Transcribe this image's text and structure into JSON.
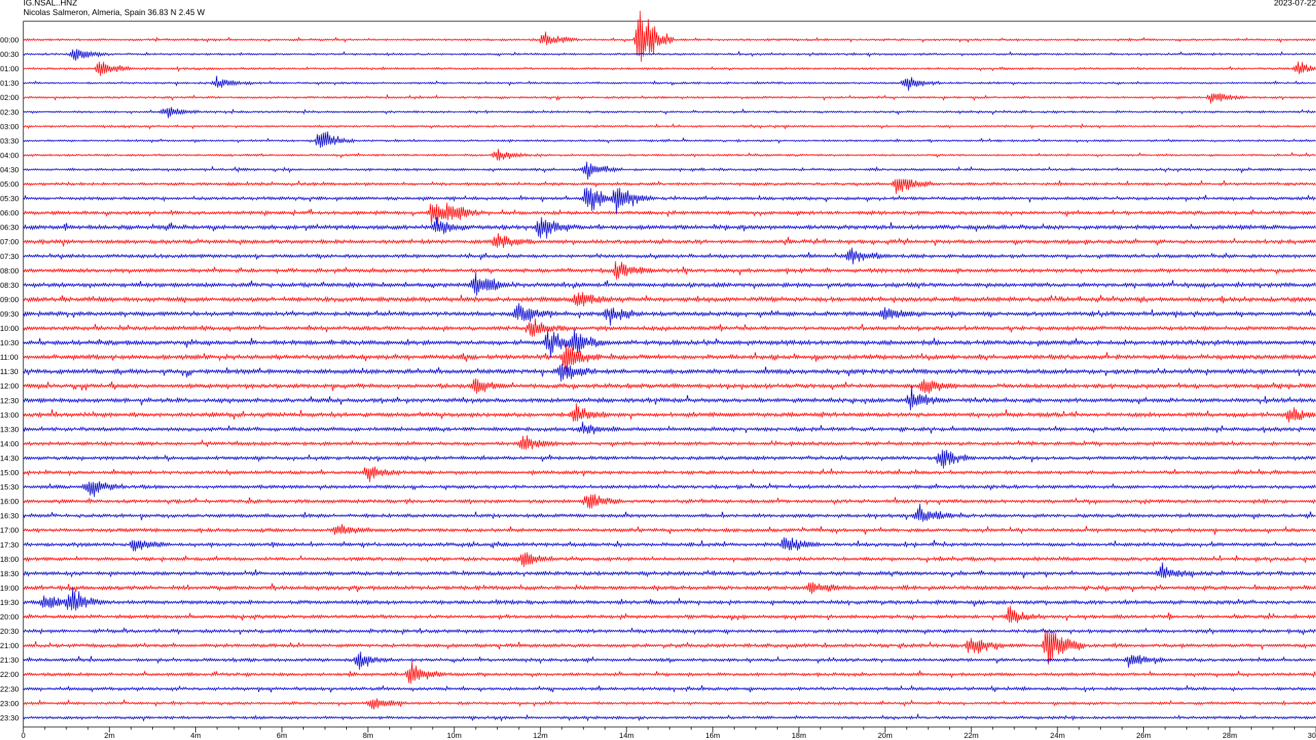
{
  "header": {
    "station": "IG.NSAL..HNZ",
    "location": "Nicolas Salmeron, Almeria, Spain  36.83 N 2.45 W",
    "date": "2023-07-22"
  },
  "colors": {
    "even_row": "#ff0000",
    "odd_row": "#0000cc",
    "axis": "#000000"
  },
  "chart_data": {
    "type": "helicorder",
    "title": "IG.NSAL..HNZ",
    "subtitle": "Nicolas Salmeron, Almeria, Spain  36.83 N 2.45 W",
    "date": "2023-07-22",
    "rows": [
      "00:00",
      "00:30",
      "01:00",
      "01:30",
      "02:00",
      "02:30",
      "03:00",
      "03:30",
      "04:00",
      "04:30",
      "05:00",
      "05:30",
      "06:00",
      "06:30",
      "07:00",
      "07:30",
      "08:00",
      "08:30",
      "09:00",
      "09:30",
      "10:00",
      "10:30",
      "11:00",
      "11:30",
      "12:00",
      "12:30",
      "13:00",
      "13:30",
      "14:00",
      "14:30",
      "15:00",
      "15:30",
      "16:00",
      "16:30",
      "17:00",
      "17:30",
      "18:00",
      "18:30",
      "19:00",
      "19:30",
      "20:00",
      "20:30",
      "21:00",
      "21:30",
      "22:00",
      "22:30",
      "23:00",
      "23:30"
    ],
    "noise_level": [
      0.6,
      0.6,
      0.6,
      0.6,
      0.6,
      0.6,
      0.6,
      0.6,
      0.6,
      0.7,
      0.8,
      0.9,
      1.0,
      1.2,
      1.1,
      1.0,
      1.1,
      1.2,
      1.3,
      1.2,
      1.1,
      1.3,
      1.3,
      1.3,
      1.2,
      1.2,
      1.2,
      1.1,
      1.0,
      1.0,
      1.0,
      1.0,
      1.0,
      1.0,
      1.0,
      1.0,
      1.0,
      1.1,
      1.1,
      1.1,
      1.0,
      1.0,
      1.0,
      0.9,
      0.9,
      0.9,
      0.8,
      0.8
    ],
    "events": [
      {
        "row": 0,
        "minute": 14.3,
        "amplitude": 5.0
      },
      {
        "row": 0,
        "minute": 12.1,
        "amplitude": 1.2
      },
      {
        "row": 1,
        "minute": 1.2,
        "amplitude": 1.0
      },
      {
        "row": 2,
        "minute": 1.8,
        "amplitude": 1.2
      },
      {
        "row": 2,
        "minute": 29.6,
        "amplitude": 1.0
      },
      {
        "row": 3,
        "minute": 4.5,
        "amplitude": 0.8
      },
      {
        "row": 3,
        "minute": 20.5,
        "amplitude": 1.0
      },
      {
        "row": 4,
        "minute": 27.6,
        "amplitude": 1.0
      },
      {
        "row": 5,
        "minute": 3.3,
        "amplitude": 0.9
      },
      {
        "row": 7,
        "minute": 6.9,
        "amplitude": 1.8
      },
      {
        "row": 8,
        "minute": 11.0,
        "amplitude": 0.9
      },
      {
        "row": 9,
        "minute": 13.1,
        "amplitude": 1.3
      },
      {
        "row": 10,
        "minute": 20.3,
        "amplitude": 1.5
      },
      {
        "row": 11,
        "minute": 13.8,
        "amplitude": 2.2
      },
      {
        "row": 11,
        "minute": 13.1,
        "amplitude": 2.5
      },
      {
        "row": 12,
        "minute": 9.5,
        "amplitude": 1.8
      },
      {
        "row": 12,
        "minute": 9.9,
        "amplitude": 1.3
      },
      {
        "row": 13,
        "minute": 12.0,
        "amplitude": 2.0
      },
      {
        "row": 13,
        "minute": 9.6,
        "amplitude": 1.3
      },
      {
        "row": 14,
        "minute": 11.0,
        "amplitude": 1.3
      },
      {
        "row": 15,
        "minute": 19.2,
        "amplitude": 1.3
      },
      {
        "row": 16,
        "minute": 13.8,
        "amplitude": 1.6
      },
      {
        "row": 17,
        "minute": 10.5,
        "amplitude": 2.2
      },
      {
        "row": 18,
        "minute": 12.9,
        "amplitude": 1.2
      },
      {
        "row": 19,
        "minute": 11.5,
        "amplitude": 1.5
      },
      {
        "row": 19,
        "minute": 13.6,
        "amplitude": 1.6
      },
      {
        "row": 19,
        "minute": 20.0,
        "amplitude": 1.2
      },
      {
        "row": 20,
        "minute": 11.8,
        "amplitude": 1.3
      },
      {
        "row": 21,
        "minute": 12.2,
        "amplitude": 1.8
      },
      {
        "row": 21,
        "minute": 12.8,
        "amplitude": 1.5
      },
      {
        "row": 22,
        "minute": 12.6,
        "amplitude": 2.0
      },
      {
        "row": 23,
        "minute": 12.5,
        "amplitude": 1.8
      },
      {
        "row": 24,
        "minute": 10.5,
        "amplitude": 1.2
      },
      {
        "row": 24,
        "minute": 20.9,
        "amplitude": 1.3
      },
      {
        "row": 25,
        "minute": 20.6,
        "amplitude": 1.6
      },
      {
        "row": 26,
        "minute": 12.8,
        "amplitude": 1.6
      },
      {
        "row": 26,
        "minute": 29.4,
        "amplitude": 1.0
      },
      {
        "row": 27,
        "minute": 13.0,
        "amplitude": 1.1
      },
      {
        "row": 28,
        "minute": 11.6,
        "amplitude": 1.4
      },
      {
        "row": 29,
        "minute": 21.3,
        "amplitude": 1.4
      },
      {
        "row": 30,
        "minute": 8.0,
        "amplitude": 1.2
      },
      {
        "row": 31,
        "minute": 1.5,
        "amplitude": 1.6
      },
      {
        "row": 32,
        "minute": 13.1,
        "amplitude": 1.3
      },
      {
        "row": 33,
        "minute": 20.8,
        "amplitude": 1.6
      },
      {
        "row": 34,
        "minute": 7.3,
        "amplitude": 1.0
      },
      {
        "row": 35,
        "minute": 2.6,
        "amplitude": 1.2
      },
      {
        "row": 35,
        "minute": 17.7,
        "amplitude": 1.2
      },
      {
        "row": 36,
        "minute": 11.6,
        "amplitude": 1.3
      },
      {
        "row": 37,
        "minute": 26.4,
        "amplitude": 1.3
      },
      {
        "row": 38,
        "minute": 18.3,
        "amplitude": 1.2
      },
      {
        "row": 39,
        "minute": 1.1,
        "amplitude": 1.8
      },
      {
        "row": 39,
        "minute": 0.5,
        "amplitude": 1.3
      },
      {
        "row": 40,
        "minute": 22.9,
        "amplitude": 1.3
      },
      {
        "row": 42,
        "minute": 23.8,
        "amplitude": 4.0
      },
      {
        "row": 42,
        "minute": 22.0,
        "amplitude": 1.4
      },
      {
        "row": 43,
        "minute": 7.8,
        "amplitude": 1.3
      },
      {
        "row": 43,
        "minute": 25.7,
        "amplitude": 1.1
      },
      {
        "row": 44,
        "minute": 9.0,
        "amplitude": 1.8
      },
      {
        "row": 46,
        "minute": 8.1,
        "amplitude": 0.9
      }
    ],
    "x_axis": {
      "ticks": [
        "0",
        "2m",
        "4m",
        "6m",
        "8m",
        "10m",
        "12m",
        "14m",
        "16m",
        "18m",
        "20m",
        "22m",
        "24m",
        "26m",
        "28m",
        "30"
      ],
      "range_minutes": [
        0,
        30
      ]
    }
  }
}
